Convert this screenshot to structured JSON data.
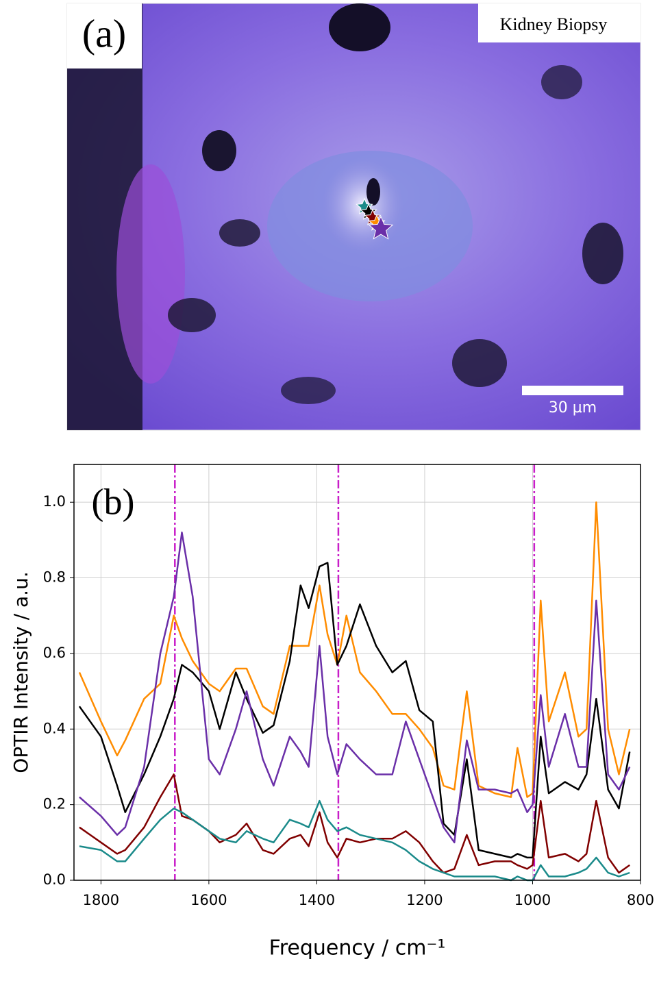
{
  "panel_a": {
    "label": "(a)",
    "title": "Kidney Biopsy",
    "scale_bar": "30 µm"
  },
  "chart_data": {
    "type": "line",
    "label": "(b)",
    "xlabel": "Frequency / cm⁻¹",
    "ylabel": "OPTIR Intensity / a.u.",
    "xlim": [
      1850,
      800
    ],
    "ylim": [
      0,
      1.1
    ],
    "xticks": [
      1800,
      1600,
      1400,
      1200,
      1000,
      800
    ],
    "yticks": [
      {
        "value": 0,
        "label": "0.0"
      },
      {
        "value": 0.2,
        "label": "0.2"
      },
      {
        "value": 0.4,
        "label": "0.4"
      },
      {
        "value": 0.6,
        "label": "0.6"
      },
      {
        "value": 0.8,
        "label": "0.8"
      },
      {
        "value": 1.0,
        "label": "1.0"
      }
    ],
    "grid": true,
    "vlines": [
      1663,
      1360,
      997
    ],
    "vline_color": "#c81ec8",
    "x": [
      1840,
      1800,
      1770,
      1755,
      1720,
      1690,
      1665,
      1650,
      1630,
      1600,
      1580,
      1550,
      1530,
      1500,
      1480,
      1450,
      1430,
      1415,
      1395,
      1380,
      1362,
      1345,
      1320,
      1290,
      1260,
      1235,
      1210,
      1185,
      1165,
      1145,
      1122,
      1100,
      1070,
      1040,
      1028,
      1010,
      1000,
      985,
      970,
      940,
      915,
      900,
      882,
      860,
      840,
      820
    ],
    "series": [
      {
        "color": "#ff8c00",
        "values": [
          0.55,
          0.42,
          0.33,
          0.37,
          0.48,
          0.52,
          0.7,
          0.64,
          0.58,
          0.52,
          0.5,
          0.56,
          0.56,
          0.46,
          0.44,
          0.62,
          0.62,
          0.62,
          0.78,
          0.65,
          0.57,
          0.7,
          0.55,
          0.5,
          0.44,
          0.44,
          0.4,
          0.35,
          0.25,
          0.24,
          0.5,
          0.25,
          0.23,
          0.22,
          0.35,
          0.22,
          0.23,
          0.74,
          0.42,
          0.55,
          0.38,
          0.4,
          1.0,
          0.4,
          0.28,
          0.4
        ]
      },
      {
        "color": "#000000",
        "values": [
          0.46,
          0.38,
          0.25,
          0.18,
          0.28,
          0.38,
          0.48,
          0.57,
          0.55,
          0.5,
          0.4,
          0.55,
          0.48,
          0.39,
          0.41,
          0.58,
          0.78,
          0.72,
          0.83,
          0.84,
          0.57,
          0.62,
          0.73,
          0.62,
          0.55,
          0.58,
          0.45,
          0.42,
          0.15,
          0.12,
          0.32,
          0.08,
          0.07,
          0.06,
          0.07,
          0.06,
          0.06,
          0.38,
          0.23,
          0.26,
          0.24,
          0.28,
          0.48,
          0.24,
          0.19,
          0.34
        ]
      },
      {
        "color": "#6a2fa8",
        "values": [
          0.22,
          0.17,
          0.12,
          0.14,
          0.3,
          0.6,
          0.75,
          0.92,
          0.75,
          0.32,
          0.28,
          0.4,
          0.5,
          0.32,
          0.25,
          0.38,
          0.34,
          0.3,
          0.62,
          0.38,
          0.28,
          0.36,
          0.32,
          0.28,
          0.28,
          0.42,
          0.32,
          0.22,
          0.14,
          0.1,
          0.37,
          0.24,
          0.24,
          0.23,
          0.24,
          0.18,
          0.2,
          0.49,
          0.3,
          0.44,
          0.3,
          0.3,
          0.74,
          0.28,
          0.24,
          0.3
        ]
      },
      {
        "color": "#800000",
        "values": [
          0.14,
          0.1,
          0.07,
          0.08,
          0.14,
          0.22,
          0.28,
          0.17,
          0.16,
          0.13,
          0.1,
          0.12,
          0.15,
          0.08,
          0.07,
          0.11,
          0.12,
          0.09,
          0.18,
          0.1,
          0.06,
          0.11,
          0.1,
          0.11,
          0.11,
          0.13,
          0.1,
          0.05,
          0.02,
          0.03,
          0.12,
          0.04,
          0.05,
          0.05,
          0.04,
          0.03,
          0.04,
          0.21,
          0.06,
          0.07,
          0.05,
          0.07,
          0.21,
          0.06,
          0.02,
          0.04
        ]
      },
      {
        "color": "#1a8a8a",
        "values": [
          0.09,
          0.08,
          0.05,
          0.05,
          0.11,
          0.16,
          0.19,
          0.18,
          0.16,
          0.13,
          0.11,
          0.1,
          0.13,
          0.11,
          0.1,
          0.16,
          0.15,
          0.14,
          0.21,
          0.16,
          0.13,
          0.14,
          0.12,
          0.11,
          0.1,
          0.08,
          0.05,
          0.03,
          0.02,
          0.01,
          0.01,
          0.01,
          0.01,
          0.0,
          0.01,
          0.0,
          0.0,
          0.04,
          0.01,
          0.01,
          0.02,
          0.03,
          0.06,
          0.02,
          0.01,
          0.02
        ]
      }
    ]
  }
}
